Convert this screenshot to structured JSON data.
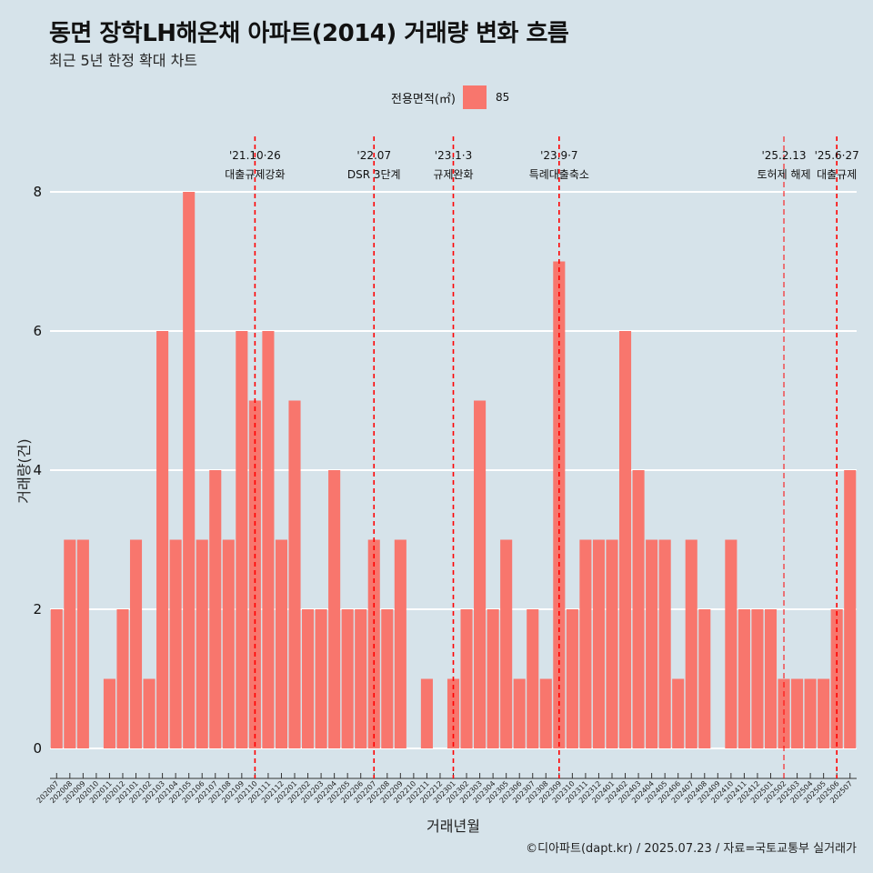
{
  "title": "동면 장학LH해온채 아파트(2014) 거래량 변화 흐름",
  "subtitle": "최근 5년 한정 확대 차트",
  "legend": {
    "title": "전용면적(㎡)",
    "item": "85"
  },
  "caption": "©디아파트(dapt.kr) / 2025.07.23 / 자료=국토교통부 실거래가",
  "colors": {
    "background": "#d6e3ea",
    "bar": "#f8766d",
    "event_line": "#ff0000",
    "grid": "#ffffff"
  },
  "chart_data": {
    "type": "bar",
    "xlabel": "거래년월",
    "ylabel": "거래량(건)",
    "ylim": [
      0,
      8
    ],
    "yticks": [
      0,
      2,
      4,
      6,
      8
    ],
    "grid": true,
    "legend_position": "top",
    "categories": [
      "202007",
      "202008",
      "202009",
      "202010",
      "202011",
      "202012",
      "202101",
      "202102",
      "202103",
      "202104",
      "202105",
      "202106",
      "202107",
      "202108",
      "202109",
      "202110",
      "202111",
      "202112",
      "202201",
      "202202",
      "202203",
      "202204",
      "202205",
      "202206",
      "202207",
      "202208",
      "202209",
      "202210",
      "202211",
      "202212",
      "202301",
      "202302",
      "202303",
      "202304",
      "202305",
      "202306",
      "202307",
      "202308",
      "202309",
      "202310",
      "202311",
      "202312",
      "202401",
      "202402",
      "202403",
      "202404",
      "202405",
      "202406",
      "202407",
      "202408",
      "202409",
      "202410",
      "202411",
      "202412",
      "202501",
      "202502",
      "202503",
      "202504",
      "202505",
      "202506",
      "202507"
    ],
    "series": [
      {
        "name": "85",
        "values": [
          2,
          3,
          3,
          0,
          1,
          2,
          3,
          1,
          6,
          3,
          8,
          3,
          4,
          3,
          6,
          5,
          6,
          3,
          5,
          2,
          2,
          4,
          2,
          2,
          3,
          2,
          3,
          0,
          1,
          0,
          1,
          2,
          5,
          2,
          3,
          1,
          2,
          1,
          7,
          2,
          3,
          3,
          3,
          6,
          4,
          3,
          3,
          1,
          3,
          2,
          0,
          3,
          2,
          2,
          2,
          1,
          1,
          1,
          1,
          2,
          4
        ]
      }
    ],
    "events": [
      {
        "x": "202110",
        "date": "'21.10·26",
        "label": "대출규제강화",
        "style": "dashed"
      },
      {
        "x": "202207",
        "date": "'22.07",
        "label": "DSR 3단계",
        "style": "dashed"
      },
      {
        "x": "202301",
        "date": "'23.1·3",
        "label": "규제완화",
        "style": "dashed"
      },
      {
        "x": "202309",
        "date": "'23.9·7",
        "label": "특례대출축소",
        "style": "dashed"
      },
      {
        "x": "202502",
        "date": "'25.2.13",
        "label": "토허제 해제",
        "style": "thin"
      },
      {
        "x": "202506",
        "date": "'25.6·27",
        "label": "대출규제",
        "style": "dashed"
      }
    ]
  }
}
